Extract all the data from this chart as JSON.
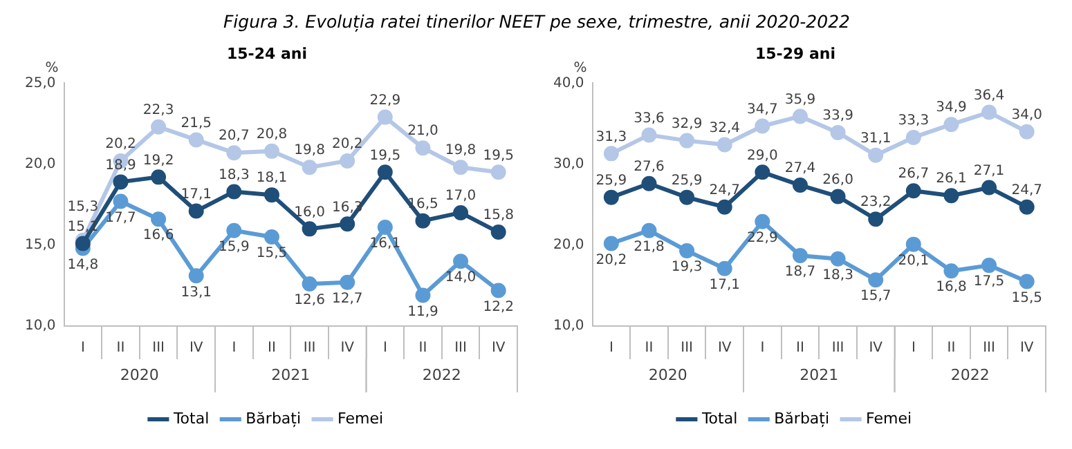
{
  "chart_data": [
    {
      "type": "line",
      "title": "15-24 ani",
      "ylabel": "%",
      "annotations": [
        "Figura 3. Evoluția ratei tinerilor NEET pe sexe, trimestre, anii 2020-2022",
        "2020",
        "2021",
        "2022"
      ],
      "categories": [
        "I",
        "II",
        "III",
        "IV",
        "I",
        "II",
        "III",
        "IV",
        "I",
        "II",
        "III",
        "IV"
      ],
      "series": [
        {
          "name": "Total",
          "color": "#1f4e79",
          "values": [
            15.1,
            18.9,
            19.2,
            17.1,
            18.3,
            18.1,
            16.0,
            16.3,
            19.5,
            16.5,
            17.0,
            15.8
          ],
          "value_labels": [
            "15,1",
            "18,9",
            "19,2",
            "17,1",
            "18,3",
            "18,1",
            "16,0",
            "16,3",
            "19,5",
            "16,5",
            "17,0",
            "15,8"
          ]
        },
        {
          "name": "Bărbați",
          "color": "#5b9bd5",
          "values": [
            14.8,
            17.7,
            16.6,
            13.1,
            15.9,
            15.5,
            12.6,
            12.7,
            16.1,
            11.9,
            14.0,
            12.2
          ],
          "value_labels": [
            "14,8",
            "17,7",
            "16,6",
            "13,1",
            "15,9",
            "15,5",
            "12,6",
            "12,7",
            "16,1",
            "11,9",
            "14,0",
            "12,2"
          ]
        },
        {
          "name": "Femei",
          "color": "#b4c7e7",
          "values": [
            15.3,
            20.2,
            22.3,
            21.5,
            20.7,
            20.8,
            19.8,
            20.2,
            22.9,
            21.0,
            19.8,
            19.5
          ],
          "value_labels": [
            "15,3",
            "20,2",
            "22,3",
            "21,5",
            "20,7",
            "20,8",
            "19,8",
            "20,2",
            "22,9",
            "21,0",
            "19,8",
            "19,5"
          ]
        }
      ],
      "ylim": [
        10,
        25
      ],
      "yticks": [
        {
          "value": 10,
          "label": "10,0"
        },
        {
          "value": 15,
          "label": "15,0"
        },
        {
          "value": 20,
          "label": "20,0"
        },
        {
          "value": 25,
          "label": "25,0"
        }
      ],
      "legend": "bottom",
      "marker": "circle"
    },
    {
      "type": "line",
      "title": "15-29 ani",
      "ylabel": "%",
      "annotations": [
        "2020",
        "2021",
        "2022"
      ],
      "categories": [
        "I",
        "II",
        "III",
        "IV",
        "I",
        "II",
        "III",
        "IV",
        "I",
        "II",
        "III",
        "IV"
      ],
      "series": [
        {
          "name": "Total",
          "color": "#1f4e79",
          "values": [
            25.9,
            27.6,
            25.9,
            24.7,
            29.0,
            27.4,
            26.0,
            23.2,
            26.7,
            26.1,
            27.1,
            24.7
          ],
          "value_labels": [
            "25,9",
            "27,6",
            "25,9",
            "24,7",
            "29,0",
            "27,4",
            "26,0",
            "23,2",
            "26,7",
            "26,1",
            "27,1",
            "24,7"
          ]
        },
        {
          "name": "Bărbați",
          "color": "#5b9bd5",
          "values": [
            20.2,
            21.8,
            19.3,
            17.1,
            22.9,
            18.7,
            18.3,
            15.7,
            20.1,
            16.8,
            17.5,
            15.5
          ],
          "value_labels": [
            "20,2",
            "21,8",
            "19,3",
            "17,1",
            "22,9",
            "18,7",
            "18,3",
            "15,7",
            "20,1",
            "16,8",
            "17,5",
            "15,5"
          ]
        },
        {
          "name": "Femei",
          "color": "#b4c7e7",
          "values": [
            31.3,
            33.6,
            32.9,
            32.4,
            34.7,
            35.9,
            33.9,
            31.1,
            33.3,
            34.9,
            36.4,
            34.0
          ],
          "value_labels": [
            "31,3",
            "33,6",
            "32,9",
            "32,4",
            "34,7",
            "35,9",
            "33,9",
            "31,1",
            "33,3",
            "34,9",
            "36,4",
            "34,0"
          ]
        }
      ],
      "ylim": [
        10,
        40
      ],
      "yticks": [
        {
          "value": 10,
          "label": "10,0"
        },
        {
          "value": 20,
          "label": "20,0"
        },
        {
          "value": 30,
          "label": "30,0"
        },
        {
          "value": 40,
          "label": "40,0"
        }
      ],
      "legend": "bottom",
      "marker": "circle"
    }
  ]
}
